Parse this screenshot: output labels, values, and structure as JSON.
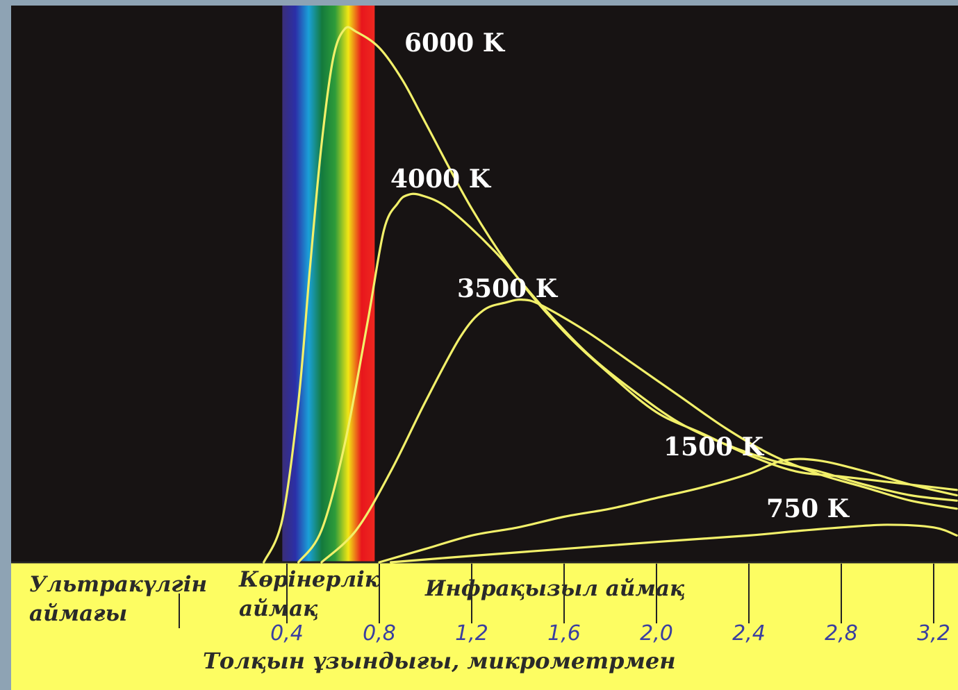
{
  "chart_data": {
    "type": "line",
    "xlabel": "Толқын ұзындығы, микрометрмен",
    "ylabel": "",
    "xlim": [
      0,
      3.3
    ],
    "ylim": [
      0,
      1
    ],
    "x_ticks": [
      {
        "value": 0.4,
        "label": "0,4"
      },
      {
        "value": 0.8,
        "label": "0,8"
      },
      {
        "value": 1.2,
        "label": "1,2"
      },
      {
        "value": 1.6,
        "label": "1,6"
      },
      {
        "value": 2.0,
        "label": "2,0"
      },
      {
        "value": 2.4,
        "label": "2,4"
      },
      {
        "value": 2.8,
        "label": "2,8"
      },
      {
        "value": 3.2,
        "label": "3,2"
      }
    ],
    "regions": [
      {
        "name": "uv",
        "lines": [
          "Ультракүлгін",
          "аймағы"
        ]
      },
      {
        "name": "visible",
        "lines": [
          "Көрінерлік",
          "аймақ"
        ]
      },
      {
        "name": "infrared",
        "lines": [
          "Инфрақызыл аймақ"
        ]
      }
    ],
    "spectrum_colors": [
      "#3a2e78",
      "#2b2fa8",
      "#1aa0d8",
      "#147a3c",
      "#2e9c3a",
      "#f2e614",
      "#e8161c",
      "#ee2820"
    ],
    "curve_color": "#f2f06a",
    "series": [
      {
        "name": "6000 K",
        "x": [
          0.3,
          0.38,
          0.45,
          0.5,
          0.55,
          0.6,
          0.65,
          0.7,
          0.8,
          0.9,
          1.0,
          1.2,
          1.4,
          1.6,
          1.8,
          2.0,
          2.2,
          2.4,
          2.6,
          2.8,
          3.0,
          3.2,
          3.3
        ],
        "y": [
          0.0,
          0.08,
          0.3,
          0.55,
          0.78,
          0.94,
          0.995,
          0.99,
          0.96,
          0.9,
          0.82,
          0.66,
          0.53,
          0.43,
          0.35,
          0.28,
          0.24,
          0.2,
          0.17,
          0.16,
          0.15,
          0.14,
          0.135
        ]
      },
      {
        "name": "4000 K",
        "x": [
          0.45,
          0.55,
          0.65,
          0.75,
          0.82,
          0.88,
          0.92,
          0.98,
          1.1,
          1.3,
          1.5,
          1.7,
          1.9,
          2.1,
          2.3,
          2.5,
          2.7,
          2.9,
          3.1,
          3.3
        ],
        "y": [
          0.0,
          0.06,
          0.22,
          0.45,
          0.62,
          0.67,
          0.685,
          0.685,
          0.66,
          0.58,
          0.48,
          0.39,
          0.32,
          0.26,
          0.22,
          0.19,
          0.17,
          0.145,
          0.125,
          0.115
        ]
      },
      {
        "name": "3500 K",
        "x": [
          0.55,
          0.7,
          0.85,
          1.0,
          1.15,
          1.25,
          1.35,
          1.42,
          1.5,
          1.7,
          1.9,
          2.1,
          2.3,
          2.5,
          2.7,
          2.9,
          3.1,
          3.3
        ],
        "y": [
          0.0,
          0.06,
          0.17,
          0.3,
          0.42,
          0.47,
          0.485,
          0.49,
          0.48,
          0.43,
          0.37,
          0.31,
          0.25,
          0.2,
          0.165,
          0.14,
          0.115,
          0.1
        ]
      },
      {
        "name": "1500 K",
        "x": [
          0.8,
          1.0,
          1.2,
          1.4,
          1.6,
          1.8,
          2.0,
          2.2,
          2.4,
          2.55,
          2.7,
          2.9,
          3.1,
          3.3
        ],
        "y": [
          0.0,
          0.025,
          0.05,
          0.065,
          0.085,
          0.1,
          0.12,
          0.14,
          0.165,
          0.19,
          0.19,
          0.17,
          0.145,
          0.125
        ]
      },
      {
        "name": "750 K",
        "x": [
          0.85,
          1.2,
          1.6,
          2.0,
          2.4,
          2.6,
          2.8,
          3.0,
          3.2,
          3.3
        ],
        "y": [
          0.0,
          0.012,
          0.025,
          0.038,
          0.05,
          0.058,
          0.065,
          0.07,
          0.065,
          0.05
        ]
      }
    ]
  }
}
